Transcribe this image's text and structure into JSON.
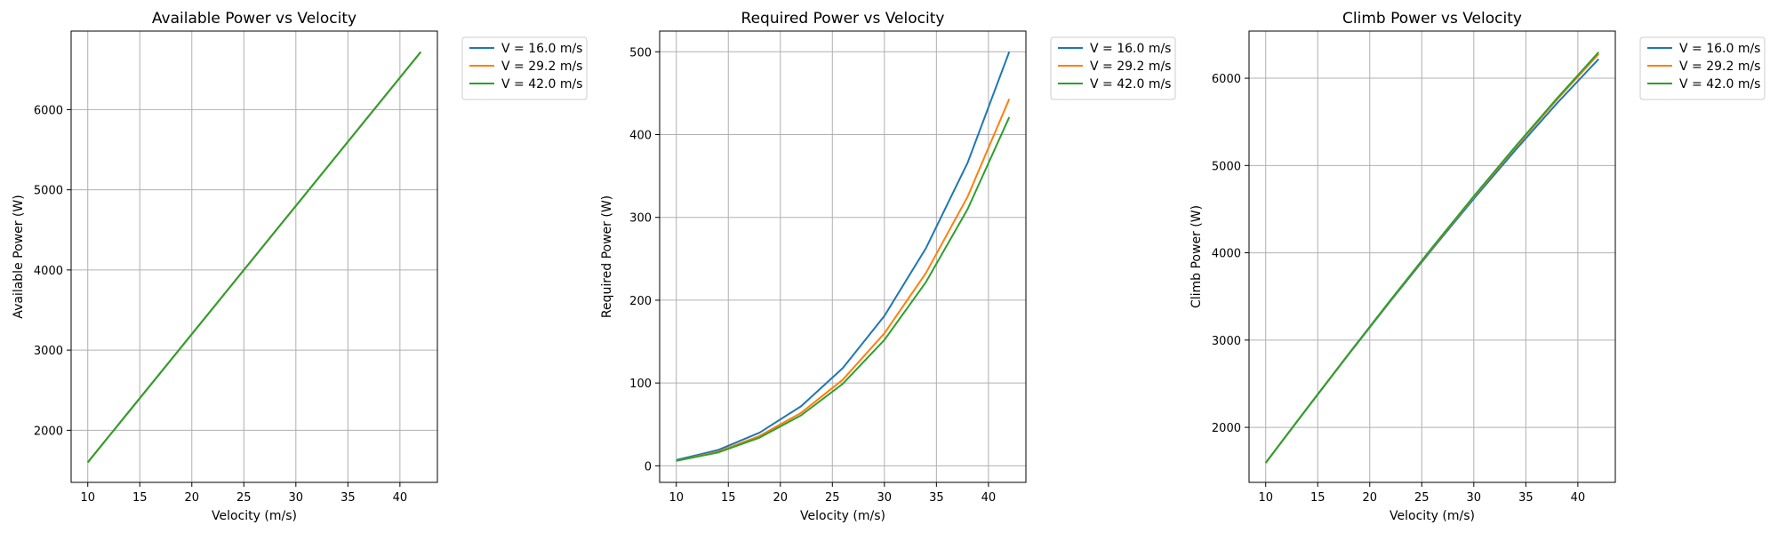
{
  "chart_data": [
    {
      "type": "line",
      "title": "Available Power vs Velocity",
      "xlabel": "Velocity (m/s)",
      "ylabel": "Available Power (W)",
      "xlim": [
        8.4,
        43.6
      ],
      "ylim": [
        1350,
        6980
      ],
      "xticks": [
        10,
        15,
        20,
        25,
        30,
        35,
        40
      ],
      "yticks": [
        2000,
        3000,
        4000,
        5000,
        6000
      ],
      "grid": true,
      "legend": "outside-top-right",
      "x": [
        10,
        14,
        18,
        22,
        26,
        30,
        34,
        38,
        42
      ],
      "series": [
        {
          "name": "V = 16.0 m/s",
          "color": "#1f77b4",
          "values": [
            1600,
            2240,
            2880,
            3520,
            4160,
            4800,
            5440,
            6080,
            6720
          ]
        },
        {
          "name": "V = 29.2 m/s",
          "color": "#ff7f0e",
          "values": [
            1600,
            2240,
            2880,
            3520,
            4160,
            4800,
            5440,
            6080,
            6720
          ]
        },
        {
          "name": "V = 42.0 m/s",
          "color": "#2ca02c",
          "values": [
            1600,
            2240,
            2880,
            3520,
            4160,
            4800,
            5440,
            6080,
            6720
          ]
        }
      ]
    },
    {
      "type": "line",
      "title": "Required Power vs Velocity",
      "xlabel": "Velocity (m/s)",
      "ylabel": "Required Power (W)",
      "xlim": [
        8.4,
        43.6
      ],
      "ylim": [
        -20,
        525
      ],
      "xticks": [
        10,
        15,
        20,
        25,
        30,
        35,
        40
      ],
      "yticks": [
        0,
        100,
        200,
        300,
        400,
        500
      ],
      "grid": true,
      "legend": "outside-top-right",
      "x": [
        10,
        14,
        18,
        22,
        26,
        30,
        34,
        38,
        42
      ],
      "series": [
        {
          "name": "V = 16.0 m/s",
          "color": "#1f77b4",
          "values": [
            7,
            19,
            40,
            72,
            118,
            181,
            263,
            366,
            500
          ]
        },
        {
          "name": "V = 29.2 m/s",
          "color": "#ff7f0e",
          "values": [
            6,
            17,
            36,
            64,
            104,
            160,
            233,
            325,
            443
          ]
        },
        {
          "name": "V = 42.0 m/s",
          "color": "#2ca02c",
          "values": [
            6,
            16,
            34,
            61,
            99,
            152,
            222,
            310,
            421
          ]
        }
      ]
    },
    {
      "type": "line",
      "title": "Climb Power vs Velocity",
      "xlabel": "Velocity (m/s)",
      "ylabel": "Climb Power (W)",
      "xlim": [
        8.4,
        43.6
      ],
      "ylim": [
        1370,
        6540
      ],
      "xticks": [
        10,
        15,
        20,
        25,
        30,
        35,
        40
      ],
      "yticks": [
        2000,
        3000,
        4000,
        5000,
        6000
      ],
      "grid": true,
      "legend": "outside-top-right",
      "x": [
        10,
        14,
        18,
        22,
        26,
        30,
        34,
        38,
        42
      ],
      "series": [
        {
          "name": "V = 16.0 m/s",
          "color": "#1f77b4",
          "values": [
            1593,
            2221,
            2840,
            3448,
            4042,
            4619,
            5177,
            5714,
            6220
          ]
        },
        {
          "name": "V = 29.2 m/s",
          "color": "#ff7f0e",
          "values": [
            1594,
            2223,
            2844,
            3456,
            4056,
            4640,
            5207,
            5755,
            6277
          ]
        },
        {
          "name": "V = 42.0 m/s",
          "color": "#2ca02c",
          "values": [
            1594,
            2224,
            2846,
            3459,
            4061,
            4648,
            5218,
            5770,
            6299
          ]
        }
      ]
    }
  ]
}
